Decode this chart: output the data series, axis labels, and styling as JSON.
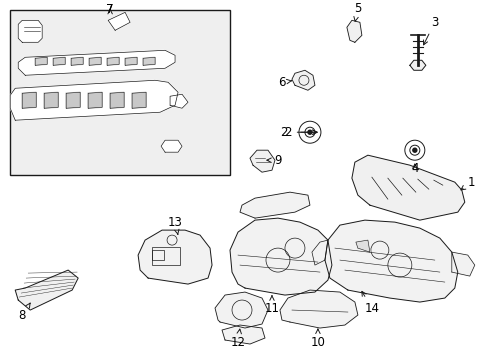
{
  "bg": "#ffffff",
  "lc": "#1a1a1a",
  "box_fill": "#e8e8e8",
  "fs": 8.5,
  "title_fs": 10,
  "parts_fill": "#ffffff",
  "label_color": "#000000"
}
